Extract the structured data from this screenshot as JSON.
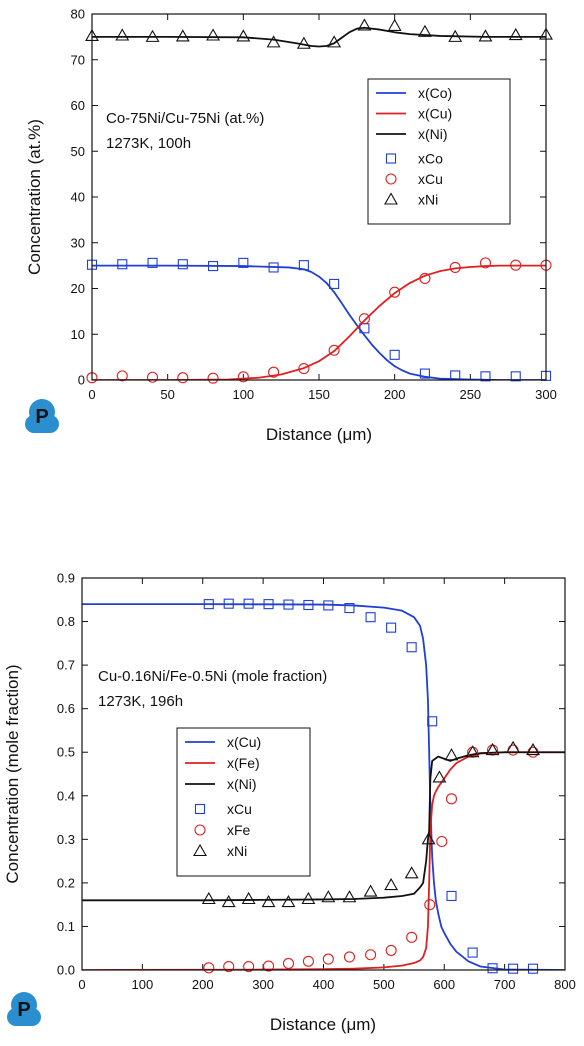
{
  "logo": {
    "letter": "P",
    "color": "#2b8fcf"
  },
  "chart_data": [
    {
      "type": "line",
      "annotation": [
        "Co-75Ni/Cu-75Ni (at.%)",
        "1273K, 100h"
      ],
      "xlabel": "Distance (μm)",
      "ylabel": "Concentration (at.%)",
      "xlim": [
        0,
        300
      ],
      "ylim": [
        0,
        80
      ],
      "xticks": [
        0,
        50,
        100,
        150,
        200,
        250,
        300
      ],
      "yticks": [
        0,
        10,
        20,
        30,
        40,
        50,
        60,
        70,
        80
      ],
      "grid": false,
      "legend_position": "right-middle",
      "series": [
        {
          "name": "x(Co)",
          "kind": "line",
          "color": "#1f3fd6",
          "x": [
            0,
            50,
            100,
            130,
            140,
            145,
            150,
            155,
            160,
            165,
            170,
            175,
            180,
            185,
            190,
            195,
            200,
            205,
            210,
            220,
            230,
            250,
            270,
            300
          ],
          "y": [
            25,
            25,
            24.9,
            24.6,
            24.2,
            23.6,
            22.6,
            21.2,
            19.2,
            16.8,
            14.3,
            12.0,
            9.8,
            7.7,
            5.9,
            4.3,
            3.0,
            2.1,
            1.4,
            0.7,
            0.3,
            0.1,
            0,
            0
          ]
        },
        {
          "name": "x(Cu)",
          "kind": "line",
          "color": "#e02020",
          "x": [
            0,
            50,
            90,
            110,
            125,
            140,
            150,
            160,
            170,
            180,
            190,
            200,
            210,
            220,
            230,
            240,
            250,
            260,
            270,
            280,
            300
          ],
          "y": [
            0,
            0,
            0.1,
            0.5,
            1.2,
            2.6,
            4.1,
            6.3,
            9.5,
            13.0,
            16.2,
            19.0,
            21.2,
            22.8,
            23.8,
            24.4,
            24.7,
            24.9,
            25,
            25,
            25
          ]
        },
        {
          "name": "x(Ni)",
          "kind": "line",
          "color": "#111111",
          "x": [
            0,
            50,
            100,
            120,
            135,
            145,
            150,
            155,
            160,
            165,
            170,
            175,
            180,
            190,
            200,
            210,
            230,
            260,
            300
          ],
          "y": [
            75,
            75,
            74.9,
            74.4,
            73.6,
            73.0,
            72.9,
            73.0,
            73.6,
            74.8,
            76.0,
            76.8,
            77.0,
            76.6,
            76.0,
            75.6,
            75.2,
            75,
            75
          ]
        },
        {
          "name": "xCo",
          "kind": "marker",
          "marker": "square",
          "color": "#1f3fd6",
          "x": [
            0,
            20,
            40,
            60,
            80,
            100,
            120,
            140,
            160,
            180,
            200,
            220,
            240,
            260,
            280,
            300
          ],
          "y": [
            25.2,
            25.3,
            25.6,
            25.3,
            24.9,
            25.6,
            24.6,
            25.1,
            21.0,
            11.3,
            5.5,
            1.4,
            1.0,
            0.8,
            0.8,
            0.9
          ]
        },
        {
          "name": "xCu",
          "kind": "marker",
          "marker": "circle",
          "color": "#e02020",
          "x": [
            0,
            20,
            40,
            60,
            80,
            100,
            120,
            140,
            160,
            180,
            200,
            220,
            240,
            260,
            280,
            300
          ],
          "y": [
            0.5,
            0.9,
            0.6,
            0.5,
            0.4,
            0.7,
            1.7,
            2.5,
            6.5,
            13.4,
            19.2,
            22.2,
            24.6,
            25.6,
            25.1,
            25.1
          ]
        },
        {
          "name": "xNi",
          "kind": "marker",
          "marker": "triangle",
          "color": "#111111",
          "x": [
            0,
            20,
            40,
            60,
            80,
            100,
            120,
            140,
            160,
            180,
            200,
            220,
            240,
            260,
            280,
            300
          ],
          "y": [
            75.2,
            75.3,
            75.0,
            75.1,
            75.3,
            75.1,
            73.8,
            73.5,
            73.8,
            77.5,
            77.4,
            76.1,
            75.0,
            75.1,
            75.4,
            75.5
          ]
        }
      ]
    },
    {
      "type": "line",
      "annotation": [
        "Cu-0.16Ni/Fe-0.5Ni (mole fraction)",
        "1273K, 196h"
      ],
      "xlabel": "Distance (μm)",
      "ylabel": "Concentration (mole fraction)",
      "xlim": [
        0,
        800
      ],
      "ylim": [
        0,
        0.9
      ],
      "xticks": [
        0,
        100,
        200,
        300,
        400,
        500,
        600,
        700,
        800
      ],
      "yticks": [
        0.0,
        0.1,
        0.2,
        0.3,
        0.4,
        0.5,
        0.6,
        0.7,
        0.8,
        0.9
      ],
      "grid": false,
      "legend_position": "left-middle",
      "series": [
        {
          "name": "x(Cu)",
          "kind": "line",
          "color": "#1f3fd6",
          "x": [
            0,
            200,
            400,
            450,
            500,
            530,
            550,
            560,
            565,
            570,
            573,
            575,
            577,
            580,
            583,
            586,
            590,
            595,
            600,
            610,
            620,
            640,
            660,
            700,
            800
          ],
          "y": [
            0.84,
            0.84,
            0.839,
            0.837,
            0.832,
            0.825,
            0.81,
            0.79,
            0.76,
            0.7,
            0.62,
            0.5,
            0.38,
            0.26,
            0.2,
            0.16,
            0.13,
            0.1,
            0.085,
            0.06,
            0.042,
            0.02,
            0.008,
            0.001,
            0
          ]
        },
        {
          "name": "x(Fe)",
          "kind": "line",
          "color": "#e02020",
          "x": [
            0,
            200,
            300,
            400,
            450,
            500,
            530,
            550,
            560,
            565,
            570,
            573,
            575,
            577,
            580,
            583,
            586,
            590,
            600,
            610,
            620,
            640,
            660,
            700,
            800
          ],
          "y": [
            0,
            0.0005,
            0.001,
            0.002,
            0.003,
            0.006,
            0.01,
            0.016,
            0.022,
            0.03,
            0.05,
            0.1,
            0.2,
            0.32,
            0.38,
            0.4,
            0.41,
            0.42,
            0.44,
            0.46,
            0.475,
            0.49,
            0.497,
            0.5,
            0.5
          ]
        },
        {
          "name": "x(Ni)",
          "kind": "line",
          "color": "#111111",
          "x": [
            0,
            200,
            300,
            400,
            450,
            500,
            530,
            550,
            560,
            565,
            570,
            573,
            575,
            577,
            580,
            585,
            590,
            600,
            610,
            620,
            640,
            660,
            700,
            800
          ],
          "y": [
            0.16,
            0.16,
            0.161,
            0.162,
            0.163,
            0.166,
            0.17,
            0.175,
            0.19,
            0.2,
            0.25,
            0.3,
            0.32,
            0.44,
            0.48,
            0.485,
            0.49,
            0.485,
            0.48,
            0.485,
            0.493,
            0.498,
            0.5,
            0.5
          ]
        },
        {
          "name": "xCu",
          "kind": "marker",
          "marker": "square",
          "color": "#1f3fd6",
          "x": [
            210,
            243,
            276,
            309,
            342,
            375,
            408,
            443,
            478,
            512,
            546,
            580,
            612,
            647,
            680,
            714,
            747
          ],
          "y": [
            0.84,
            0.841,
            0.841,
            0.84,
            0.839,
            0.838,
            0.837,
            0.831,
            0.81,
            0.786,
            0.741,
            0.571,
            0.17,
            0.04,
            0.004,
            0.003,
            0.003
          ]
        },
        {
          "name": "xFe",
          "kind": "marker",
          "marker": "circle",
          "color": "#e02020",
          "x": [
            210,
            243,
            276,
            309,
            342,
            375,
            408,
            443,
            478,
            512,
            546,
            576,
            596,
            612,
            647,
            680,
            714,
            747
          ],
          "y": [
            0.005,
            0.008,
            0.008,
            0.009,
            0.015,
            0.02,
            0.025,
            0.03,
            0.035,
            0.045,
            0.075,
            0.15,
            0.295,
            0.393,
            0.5,
            0.505,
            0.505,
            0.5
          ]
        },
        {
          "name": "xNi",
          "kind": "marker",
          "marker": "triangle",
          "color": "#111111",
          "x": [
            210,
            243,
            276,
            309,
            342,
            375,
            408,
            443,
            478,
            512,
            546,
            574,
            592,
            612,
            647,
            680,
            714,
            747
          ],
          "y": [
            0.163,
            0.156,
            0.163,
            0.156,
            0.156,
            0.163,
            0.167,
            0.167,
            0.18,
            0.195,
            0.222,
            0.3,
            0.442,
            0.493,
            0.5,
            0.505,
            0.51,
            0.505
          ]
        }
      ]
    }
  ]
}
